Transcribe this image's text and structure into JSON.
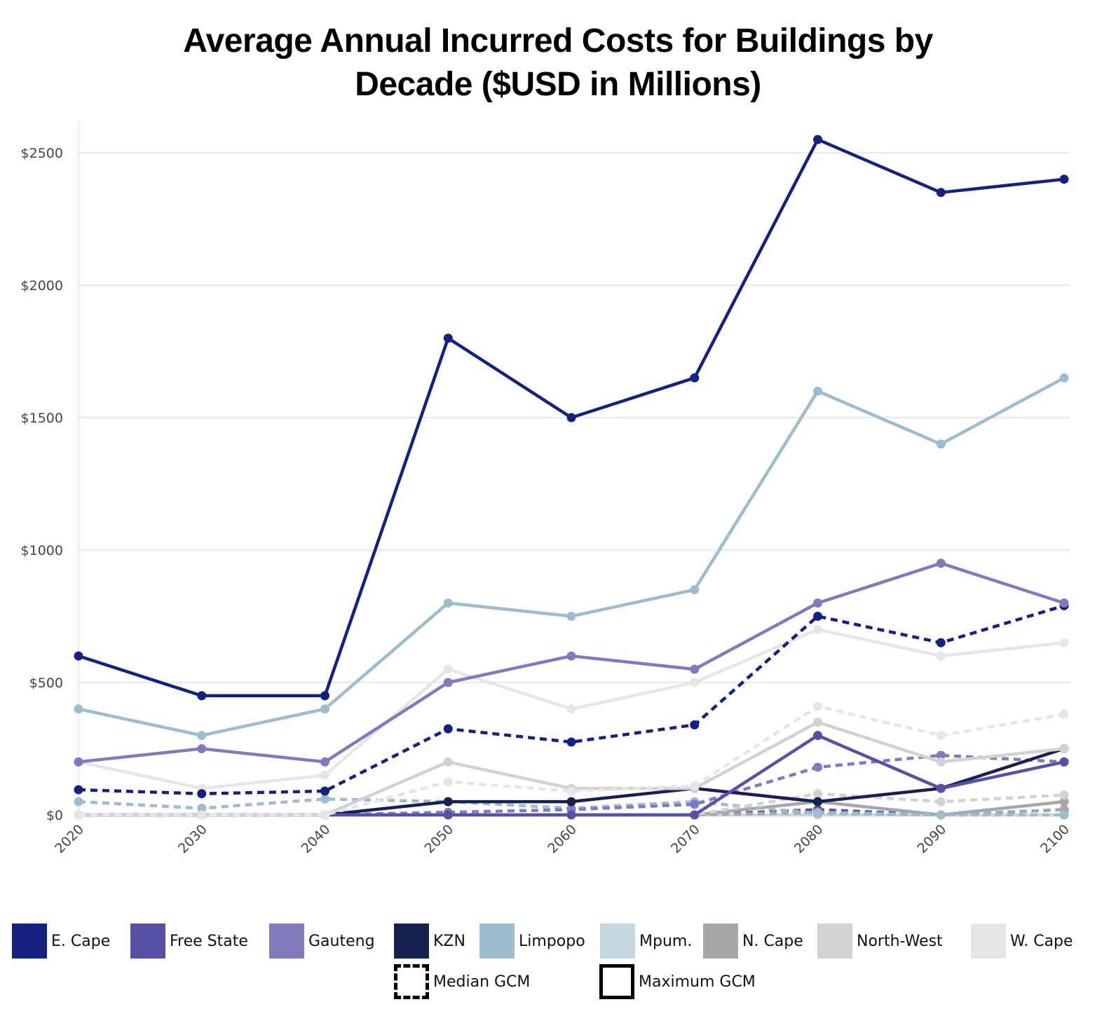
{
  "chart_data": {
    "type": "line",
    "title": [
      "Average Annual Incurred Costs for Buildings by",
      "Decade ($USD in Millions)"
    ],
    "x": [
      "2020",
      "2030",
      "2040",
      "2050",
      "2060",
      "2070",
      "2080",
      "2090",
      "2100"
    ],
    "ylim": [
      0,
      2650
    ],
    "yticks": [
      0,
      500,
      1000,
      1500,
      2000,
      2500
    ],
    "ytick_labels": [
      "$0",
      "$500",
      "$1000",
      "$1500",
      "$2000",
      "$2500"
    ],
    "grid": true,
    "legend_position": "bottom",
    "regions": [
      {
        "name": "E. Cape",
        "color": "#15217f"
      },
      {
        "name": "Free State",
        "color": "#5751a5"
      },
      {
        "name": "Gauteng",
        "color": "#7f7bbd"
      },
      {
        "name": "KZN",
        "color": "#16214f"
      },
      {
        "name": "Limpopo",
        "color": "#9dbccd"
      },
      {
        "name": "Mpum.",
        "color": "#c5d8e0"
      },
      {
        "name": "N. Cape",
        "color": "#a7a7aa"
      },
      {
        "name": "North-West",
        "color": "#d2d2d3"
      },
      {
        "name": "W. Cape",
        "color": "#e6e6e6"
      }
    ],
    "gcm_styles": [
      {
        "name": "Median GCM",
        "dash": "dashed"
      },
      {
        "name": "Maximum GCM",
        "dash": "solid"
      }
    ],
    "series": [
      {
        "region": "E. Cape",
        "gcm": "Maximum GCM",
        "values": [
          600,
          450,
          450,
          1800,
          1500,
          1650,
          2550,
          2350,
          2400
        ]
      },
      {
        "region": "E. Cape",
        "gcm": "Median GCM",
        "values": [
          95,
          80,
          90,
          325,
          275,
          340,
          750,
          650,
          790
        ]
      },
      {
        "region": "Limpopo",
        "gcm": "Maximum GCM",
        "values": [
          400,
          300,
          400,
          800,
          750,
          850,
          1600,
          1400,
          1650
        ]
      },
      {
        "region": "Limpopo",
        "gcm": "Median GCM",
        "values": [
          50,
          25,
          60,
          50,
          25,
          50,
          5,
          0,
          0
        ]
      },
      {
        "region": "Gauteng",
        "gcm": "Maximum GCM",
        "values": [
          200,
          250,
          200,
          500,
          600,
          550,
          800,
          950,
          800
        ]
      },
      {
        "region": "Gauteng",
        "gcm": "Median GCM",
        "values": [
          0,
          0,
          0,
          10,
          20,
          40,
          180,
          225,
          200
        ]
      },
      {
        "region": "W. Cape",
        "gcm": "Maximum GCM",
        "values": [
          200,
          100,
          150,
          550,
          400,
          500,
          700,
          600,
          650
        ]
      },
      {
        "region": "W. Cape",
        "gcm": "Median GCM",
        "values": [
          0,
          0,
          0,
          125,
          90,
          110,
          410,
          300,
          380
        ]
      },
      {
        "region": "North-West",
        "gcm": "Maximum GCM",
        "values": [
          0,
          0,
          0,
          200,
          100,
          100,
          350,
          200,
          250
        ]
      },
      {
        "region": "North-West",
        "gcm": "Median GCM",
        "values": [
          0,
          0,
          0,
          0,
          0,
          0,
          80,
          50,
          75
        ]
      },
      {
        "region": "Free State",
        "gcm": "Maximum GCM",
        "values": [
          0,
          0,
          0,
          0,
          0,
          0,
          300,
          100,
          200
        ]
      },
      {
        "region": "Free State",
        "gcm": "Median GCM",
        "values": [
          0,
          0,
          0,
          0,
          0,
          0,
          20,
          0,
          20
        ]
      },
      {
        "region": "KZN",
        "gcm": "Maximum GCM",
        "values": [
          0,
          0,
          0,
          50,
          50,
          100,
          50,
          100,
          250
        ]
      },
      {
        "region": "N. Cape",
        "gcm": "Maximum GCM",
        "values": [
          0,
          0,
          0,
          0,
          0,
          0,
          50,
          0,
          50
        ]
      },
      {
        "region": "N. Cape",
        "gcm": "Median GCM",
        "values": [
          0,
          0,
          0,
          0,
          0,
          0,
          10,
          0,
          20
        ]
      },
      {
        "region": "Mpum.",
        "gcm": "Maximum GCM",
        "values": [
          0,
          0,
          0,
          0,
          0,
          0,
          0,
          0,
          0
        ]
      }
    ]
  }
}
